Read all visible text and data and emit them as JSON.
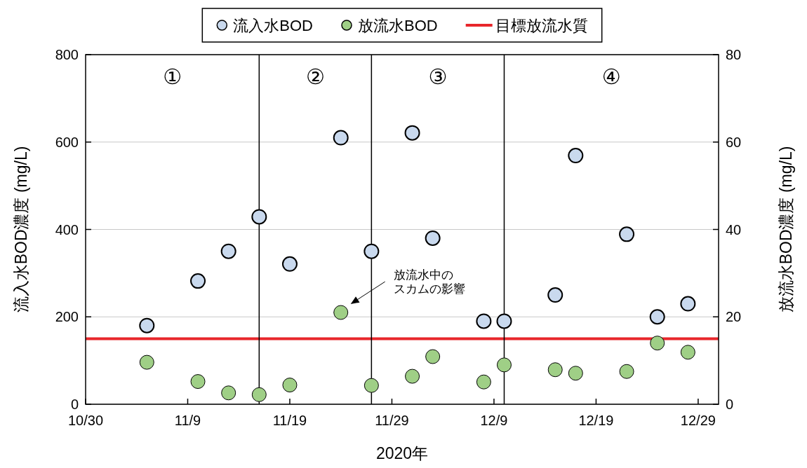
{
  "chart_data": {
    "type": "scatter",
    "xlabel": "2020年",
    "ylabel": "流入水BOD濃度 (mg/L)",
    "y2label": "放流水BOD濃度 (mg/L)",
    "x": [
      "2020-11-05",
      "2020-11-10",
      "2020-11-13",
      "2020-11-16",
      "2020-11-19",
      "2020-11-24",
      "2020-11-27",
      "2020-12-01",
      "2020-12-03",
      "2020-12-08",
      "2020-12-10",
      "2020-12-15",
      "2020-12-17",
      "2020-12-22",
      "2020-12-25",
      "2020-12-28"
    ],
    "series": [
      {
        "name": "流入水BOD",
        "color": "#c9d9ee",
        "values": [
          180,
          282,
          350,
          429,
          321,
          610,
          350,
          621,
          380,
          190,
          190,
          250,
          569,
          389,
          200,
          230
        ]
      },
      {
        "name": "放流水BOD",
        "color": "#9fcf86",
        "axis": "y2",
        "values": [
          9.6,
          5.2,
          2.6,
          2.2,
          4.4,
          21,
          4.3,
          6.4,
          10.9,
          5.1,
          9.0,
          7.9,
          7.1,
          7.5,
          14.0,
          11.9
        ]
      }
    ],
    "ref_lines": [
      {
        "axis": "y",
        "value": 150,
        "label": "目標放流水質",
        "color": "#e8262b"
      },
      {
        "axis": "x",
        "value": "2020-11-16",
        "color": "#000000"
      },
      {
        "axis": "x",
        "value": "2020-11-27",
        "color": "#000000"
      },
      {
        "axis": "x",
        "value": "2020-12-10",
        "color": "#000000"
      }
    ],
    "annotations": [
      "①",
      "②",
      "③",
      "④",
      "放流水中のスカムの影響"
    ],
    "xlim": [
      "2020-10-30",
      "2020-12-31"
    ],
    "xticks": [
      {
        "value": "2020-10-30",
        "label": "10/30"
      },
      {
        "value": "2020-11-09",
        "label": "11/9"
      },
      {
        "value": "2020-11-19",
        "label": "11/19"
      },
      {
        "value": "2020-11-29",
        "label": "11/29"
      },
      {
        "value": "2020-12-09",
        "label": "12/9"
      },
      {
        "value": "2020-12-19",
        "label": "12/19"
      },
      {
        "value": "2020-12-29",
        "label": "12/29"
      }
    ],
    "ylim": [
      0,
      800
    ],
    "yticks": [
      0,
      200,
      400,
      600,
      800
    ],
    "y2lim": [
      0,
      80
    ],
    "y2ticks": [
      0,
      20,
      40,
      60,
      80
    ],
    "grid": "y",
    "legend": "top",
    "marker": "circle"
  }
}
